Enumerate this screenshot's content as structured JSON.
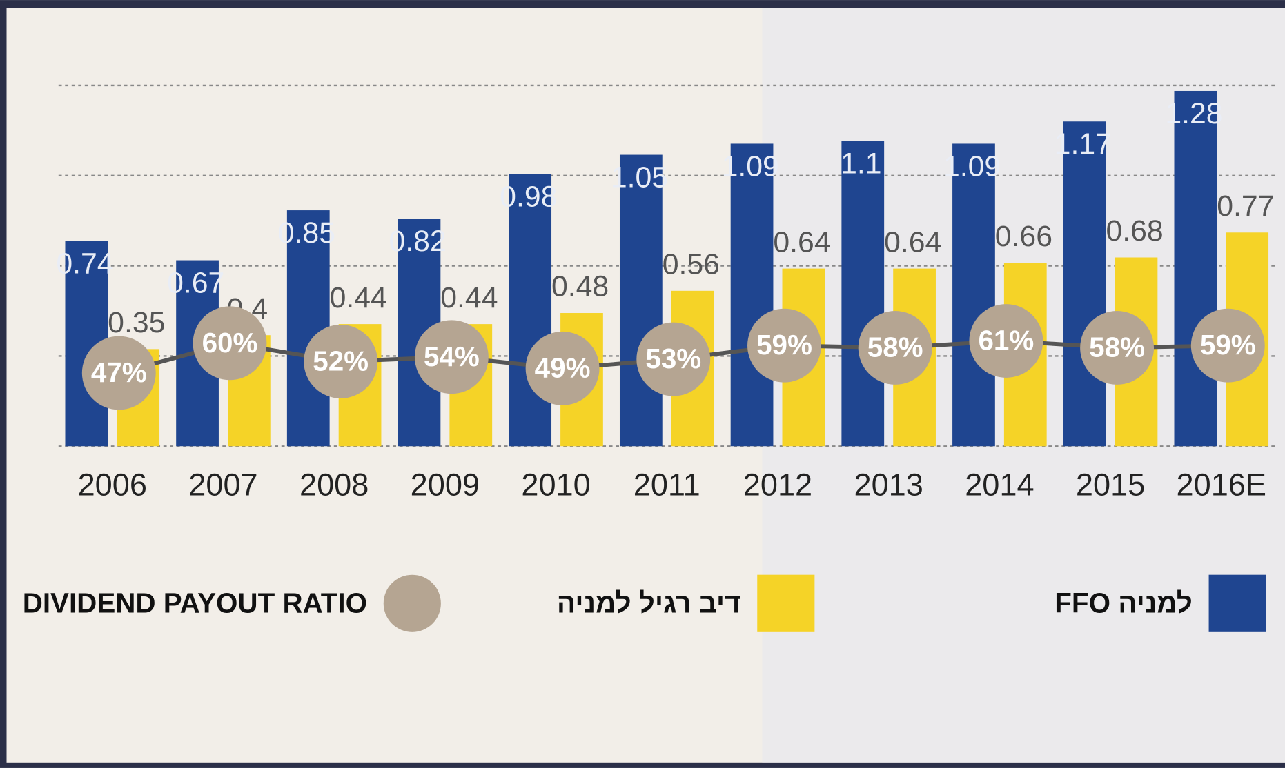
{
  "chart_data": {
    "type": "bar",
    "categories": [
      "2006",
      "2007",
      "2008",
      "2009",
      "2010",
      "2011",
      "2012",
      "2013",
      "2014",
      "2015",
      "2016E"
    ],
    "series": [
      {
        "name": "FFO למניה",
        "color": "#1f4590",
        "values": [
          0.74,
          0.67,
          0.85,
          0.82,
          0.98,
          1.05,
          1.09,
          1.1,
          1.09,
          1.17,
          1.28
        ]
      },
      {
        "name": "דיב רגיל למניה",
        "color": "#f5d327",
        "values": [
          0.35,
          0.4,
          0.44,
          0.44,
          0.48,
          0.56,
          0.64,
          0.64,
          0.66,
          0.68,
          0.77
        ]
      },
      {
        "name": "DIVIDEND PAYOUT RATIO",
        "type": "line",
        "axis": "y2",
        "color": "#b5a592",
        "line_color": "#555555",
        "values": [
          47,
          60,
          52,
          54,
          49,
          53,
          59,
          58,
          61,
          58,
          59
        ],
        "value_labels": [
          "47%",
          "60%",
          "52%",
          "54%",
          "49%",
          "53%",
          "59%",
          "58%",
          "61%",
          "58%",
          "59%"
        ]
      }
    ],
    "ylim": [
      0,
      1.6
    ],
    "yticks": [
      0,
      0.325,
      0.65,
      0.975,
      1.3
    ],
    "grid": true,
    "y2lim": [
      15,
      209
    ],
    "legend": "bottom"
  }
}
